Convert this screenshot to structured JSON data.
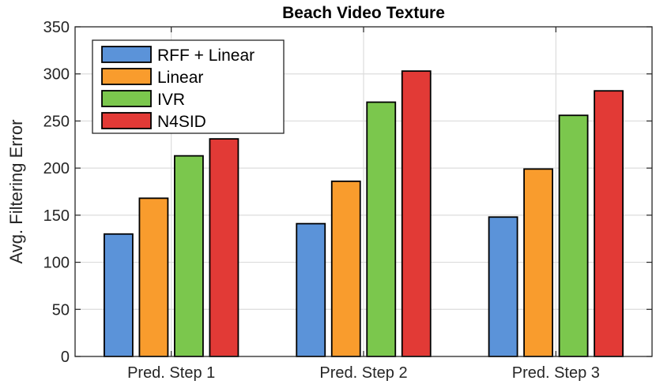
{
  "chart_data": {
    "type": "bar",
    "title": "Beach Video Texture",
    "xlabel": "",
    "ylabel": "Avg. Filtering Error",
    "categories": [
      "Pred. Step 1",
      "Pred. Step 2",
      "Pred. Step 3"
    ],
    "ylim": [
      0,
      350
    ],
    "yticks": [
      0,
      50,
      100,
      150,
      200,
      250,
      300,
      350
    ],
    "grid": true,
    "legend_position": "top-left",
    "series": [
      {
        "name": "RFF + Linear",
        "color": "#5b93d9",
        "values": [
          130,
          141,
          148
        ]
      },
      {
        "name": "Linear",
        "color": "#f99c2d",
        "values": [
          168,
          186,
          199
        ]
      },
      {
        "name": "IVR",
        "color": "#7bc74d",
        "values": [
          213,
          270,
          256
        ]
      },
      {
        "name": "N4SID",
        "color": "#e23a36",
        "values": [
          231,
          303,
          282
        ]
      }
    ]
  }
}
